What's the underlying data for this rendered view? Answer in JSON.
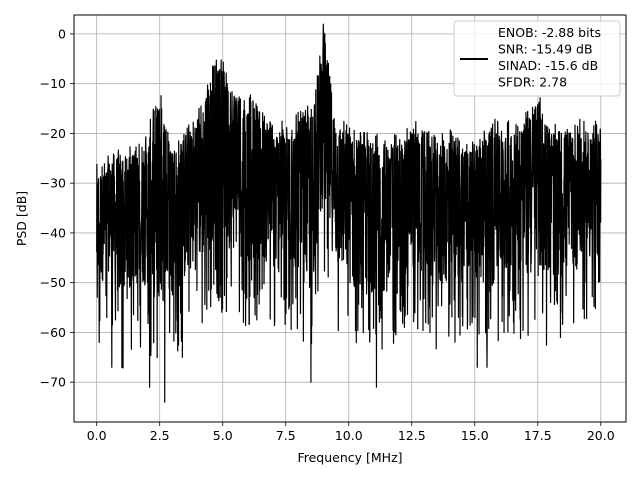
{
  "chart_data": {
    "type": "line",
    "xlabel": "Frequency [MHz]",
    "ylabel": "PSD [dB]",
    "xlim": [
      -0.9,
      21.0
    ],
    "ylim": [
      -78.0,
      3.8
    ],
    "xticks": [
      0.0,
      2.5,
      5.0,
      7.5,
      10.0,
      12.5,
      15.0,
      17.5,
      20.0
    ],
    "xtick_labels": [
      "0.0",
      "2.5",
      "5.0",
      "7.5",
      "10.0",
      "12.5",
      "15.0",
      "17.5",
      "20.0"
    ],
    "yticks": [
      0,
      -10,
      -20,
      -30,
      -40,
      -50,
      -60,
      -70
    ],
    "ytick_labels": [
      "0",
      "−10",
      "−20",
      "−30",
      "−40",
      "−50",
      "−60",
      "−70"
    ],
    "grid": true,
    "legend_position": "upper right",
    "legend_lines": [
      "ENOB: -2.88 bits",
      "SNR: -15.49 dB",
      "SINAD: -15.6 dB",
      "SFDR: 2.78"
    ],
    "series": [
      {
        "color": "#000000",
        "x": [
          0.0,
          0.5,
          1.0,
          1.5,
          2.0,
          2.5,
          3.0,
          3.5,
          4.0,
          4.5,
          4.75,
          5.0,
          5.5,
          6.0,
          6.5,
          7.0,
          7.5,
          8.0,
          8.5,
          8.8,
          9.0,
          9.1,
          9.3,
          9.5,
          10.0,
          10.5,
          11.0,
          11.5,
          12.0,
          12.5,
          13.0,
          13.5,
          14.0,
          14.5,
          15.0,
          15.5,
          16.0,
          16.5,
          17.0,
          17.5,
          18.0,
          18.5,
          19.0,
          19.5,
          20.0
        ],
        "y_envelope_upper": [
          -28,
          -26,
          -25,
          -24,
          -22,
          -13,
          -24,
          -21,
          -17,
          -10,
          -5,
          -8,
          -12,
          -14,
          -16,
          -19,
          -20,
          -18,
          -17,
          -8,
          0,
          -5,
          -12,
          -18,
          -20,
          -21,
          -22,
          -23,
          -22,
          -19,
          -21,
          -23,
          -21,
          -22,
          -24,
          -19,
          -20,
          -19,
          -18,
          -14,
          -20,
          -21,
          -19,
          -20,
          -19
        ],
        "y_envelope_lower": [
          -62,
          -57,
          -68,
          -63,
          -63,
          -74,
          -65,
          -63,
          -60,
          -58,
          -52,
          -57,
          -58,
          -60,
          -58,
          -61,
          -61,
          -60,
          -70,
          -54,
          -48,
          -50,
          -56,
          -60,
          -63,
          -71,
          -64,
          -65,
          -61,
          -60,
          -61,
          -64,
          -63,
          -62,
          -60,
          -68,
          -62,
          -60,
          -63,
          -64,
          -62,
          -61,
          -60,
          -58,
          -56
        ],
        "minima": [
          [
            0.1,
            -62
          ],
          [
            0.4,
            -57
          ],
          [
            0.6,
            -67
          ],
          [
            1.0,
            -67
          ],
          [
            2.1,
            -71
          ],
          [
            2.7,
            -74
          ],
          [
            3.4,
            -65
          ],
          [
            8.5,
            -70
          ],
          [
            11.1,
            -71
          ],
          [
            15.1,
            -67
          ],
          [
            18.4,
            -61
          ]
        ]
      }
    ]
  }
}
